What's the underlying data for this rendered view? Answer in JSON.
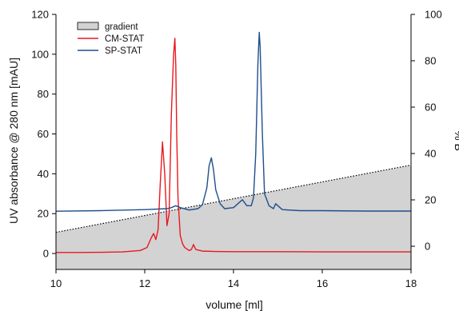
{
  "chart_data": {
    "type": "line",
    "title": "",
    "xlabel": "volume [ml]",
    "ylabel": "UV absorbance @ 280 nm [mAU]",
    "y2label": "% B",
    "xlim": [
      10,
      18
    ],
    "ylim": [
      -8,
      120
    ],
    "y2lim": [
      -10,
      100
    ],
    "xticks": [
      10,
      12,
      14,
      16,
      18
    ],
    "yticks": [
      0,
      20,
      40,
      60,
      80,
      100,
      120
    ],
    "y2ticks": [
      0,
      20,
      40,
      60,
      80,
      100
    ],
    "grid": false,
    "legend_position": "top-left",
    "gradient": {
      "name": "gradient",
      "axis": "right",
      "x": [
        10,
        18
      ],
      "y": [
        6,
        35
      ],
      "fill": "#d3d3d3"
    },
    "series": [
      {
        "name": "CM-STAT",
        "color": "#e8191e",
        "axis": "left",
        "x": [
          10.0,
          10.5,
          11.0,
          11.5,
          11.9,
          12.05,
          12.15,
          12.2,
          12.25,
          12.3,
          12.35,
          12.4,
          12.45,
          12.5,
          12.55,
          12.6,
          12.65,
          12.68,
          12.7,
          12.72,
          12.75,
          12.8,
          12.85,
          12.9,
          13.0,
          13.05,
          13.1,
          13.15,
          13.3,
          13.6,
          14.0,
          15.0,
          16.0,
          17.0,
          18.0
        ],
        "y": [
          0.5,
          0.5,
          0.6,
          0.8,
          1.5,
          3,
          8,
          10,
          7,
          12,
          35,
          56,
          40,
          14,
          20,
          70,
          100,
          108,
          95,
          60,
          28,
          9,
          5,
          3,
          1.5,
          2,
          4.5,
          2,
          1.2,
          1.0,
          0.9,
          0.9,
          0.8,
          0.8,
          0.8
        ]
      },
      {
        "name": "SP-STAT",
        "color": "#1f4e8c",
        "axis": "left",
        "x": [
          10.0,
          11.0,
          12.0,
          12.5,
          12.6,
          12.7,
          12.8,
          13.0,
          13.2,
          13.3,
          13.4,
          13.45,
          13.5,
          13.55,
          13.6,
          13.7,
          13.8,
          14.0,
          14.1,
          14.2,
          14.3,
          14.4,
          14.45,
          14.5,
          14.55,
          14.58,
          14.6,
          14.65,
          14.7,
          14.8,
          14.9,
          14.95,
          15.0,
          15.1,
          15.5,
          16.0,
          17.0,
          18.0
        ],
        "y": [
          21.2,
          21.5,
          22.0,
          22.5,
          23.0,
          24.0,
          23.0,
          21.8,
          22.5,
          24.5,
          33,
          44,
          48,
          42,
          32,
          25,
          22.5,
          23,
          25,
          27,
          24,
          24,
          28,
          50,
          95,
          111,
          104,
          60,
          30,
          24,
          22.5,
          25,
          24,
          22,
          21.5,
          21.5,
          21.3,
          21.3
        ]
      }
    ]
  }
}
